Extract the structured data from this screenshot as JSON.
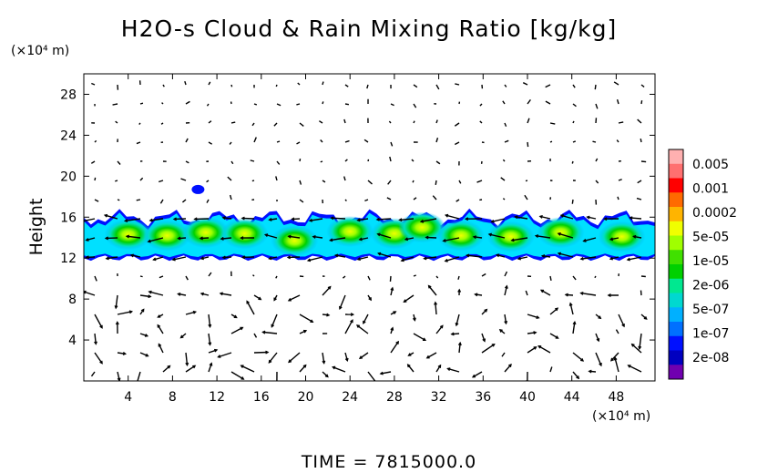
{
  "chart_data": {
    "type": "heatmap",
    "title": "H2O-s Cloud & Rain Mixing Ratio [kg/kg]",
    "ylabel": "Height",
    "y_unit": "(×10⁴ m)",
    "x_unit": "(×10⁴ m)",
    "xlim": [
      0,
      51.5
    ],
    "ylim": [
      0,
      30
    ],
    "x_ticks": [
      4,
      8,
      12,
      16,
      20,
      24,
      28,
      32,
      36,
      40,
      44,
      48
    ],
    "x_tick_labels": [
      "4",
      "8",
      "12",
      "16",
      "20",
      "24",
      "28",
      "32",
      "36",
      "40",
      "44",
      "48"
    ],
    "y_ticks": [
      4,
      8,
      12,
      16,
      20,
      24,
      28
    ],
    "y_tick_labels": [
      "4",
      "8",
      "12",
      "16",
      "20",
      "24",
      "28"
    ],
    "colorbar": {
      "labels": [
        "0.005",
        "0.001",
        "0.0002",
        "5e-05",
        "1e-05",
        "2e-06",
        "5e-07",
        "1e-07",
        "2e-08"
      ],
      "colors": [
        "#ffb0b0",
        "#ff7070",
        "#ff0000",
        "#ff6a00",
        "#ffb400",
        "#f0ff00",
        "#a0ff00",
        "#40e000",
        "#00d000",
        "#00e890",
        "#00d8d0",
        "#00b0ff",
        "#0070ff",
        "#0010ff",
        "#0000c0",
        "#7000b0"
      ]
    },
    "cloud_layer": {
      "base_height": 12,
      "top_height": 16.5,
      "x_start": 0,
      "x_end": 51.5,
      "color": "#00e0ff"
    },
    "cloud_blobs": [
      {
        "x": 4,
        "y": 14.3
      },
      {
        "x": 7.5,
        "y": 14.2
      },
      {
        "x": 11,
        "y": 14.5
      },
      {
        "x": 14.5,
        "y": 14.4
      },
      {
        "x": 19,
        "y": 13.7
      },
      {
        "x": 24,
        "y": 14.6
      },
      {
        "x": 28,
        "y": 14.4
      },
      {
        "x": 30.5,
        "y": 15
      },
      {
        "x": 34,
        "y": 14.2
      },
      {
        "x": 38.5,
        "y": 14.1
      },
      {
        "x": 43,
        "y": 14.5
      },
      {
        "x": 48.5,
        "y": 14.1
      }
    ],
    "time_label": "TIME = 7815000.0"
  }
}
